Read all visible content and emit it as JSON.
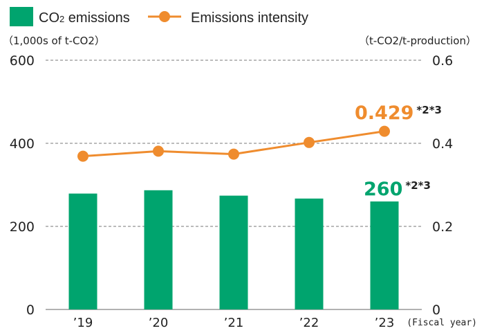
{
  "legend": {
    "bar_label_prefix": "CO",
    "bar_label_sub": "2",
    "bar_label_suffix": " emissions",
    "line_label": "Emissions intensity"
  },
  "axes": {
    "left_unit": "（1,000s of t-CO2）",
    "right_unit": "（t-CO2/t-production）",
    "x_unit": "(Fiscal year)"
  },
  "callouts": {
    "line_value": "0.429",
    "line_note": "*2*3",
    "bar_value": "260",
    "bar_note": "*2*3"
  },
  "colors": {
    "bar": "#00a46e",
    "line": "#ef8c2e",
    "grid": "#777777"
  },
  "chart_data": {
    "type": "bar",
    "categories": [
      "’19",
      "’20",
      "’21",
      "’22",
      "’23"
    ],
    "series": [
      {
        "name": "CO₂ emissions",
        "type": "bar",
        "axis": "left",
        "values": [
          279,
          287,
          274,
          267,
          260
        ]
      },
      {
        "name": "Emissions intensity",
        "type": "line",
        "axis": "right",
        "values": [
          0.369,
          0.381,
          0.374,
          0.402,
          0.429
        ]
      }
    ],
    "ylim_left": [
      0,
      600
    ],
    "yticks_left": [
      0,
      200,
      400,
      600
    ],
    "ylim_right": [
      0,
      0.6
    ],
    "yticks_right": [
      "0",
      "0.2",
      "0.4",
      "0.6"
    ],
    "grid": true,
    "legend_position": "top-left"
  }
}
